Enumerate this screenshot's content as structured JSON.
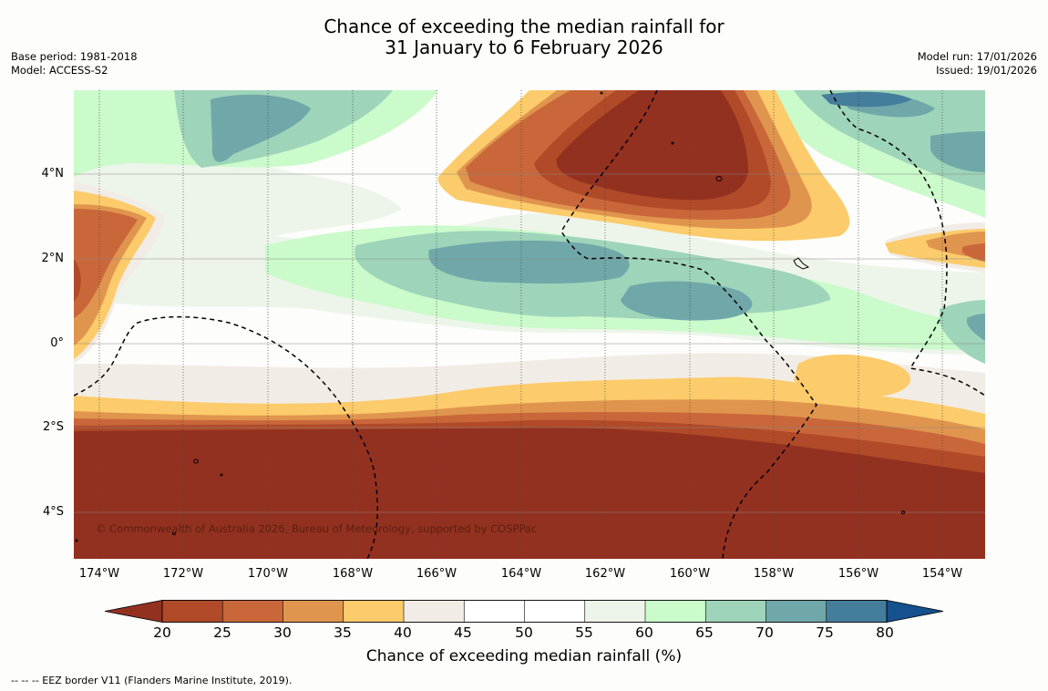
{
  "title_line1": "Chance of exceeding the median rainfall for",
  "title_line2": "31 January to 6 February 2026",
  "base_period": "Base period: 1981-2018",
  "model": "Model: ACCESS-S2",
  "model_run": "Model run: 17/01/2026",
  "issued": "Issued: 19/01/2026",
  "copyright": "© Commonwealth of Australia 2026, Bureau of Meteorology, supported by COSPPac",
  "lat_labels": [
    "4°N",
    "2°N",
    "0°",
    "2°S",
    "4°S"
  ],
  "lon_labels": [
    "174°W",
    "172°W",
    "170°W",
    "168°W",
    "166°W",
    "164°W",
    "162°W",
    "160°W",
    "158°W",
    "156°W",
    "154°W"
  ],
  "colorbar": {
    "label": "Chance of exceeding median rainfall (%)",
    "ticks": [
      "20",
      "25",
      "30",
      "35",
      "40",
      "45",
      "50",
      "55",
      "60",
      "65",
      "70",
      "75",
      "80"
    ],
    "colors": [
      "#933120",
      "#b04a28",
      "#c9673a",
      "#e0954e",
      "#fccb6b",
      "#f2ece6",
      "#ffffff",
      "#ffffff",
      "#edf5ea",
      "#cbfacb",
      "#9ed4b9",
      "#70a7a9",
      "#457d9c",
      "#15508f"
    ]
  },
  "footnote": "-- -- -- EEZ border V11 (Flanders Marine Institute, 2019)."
}
